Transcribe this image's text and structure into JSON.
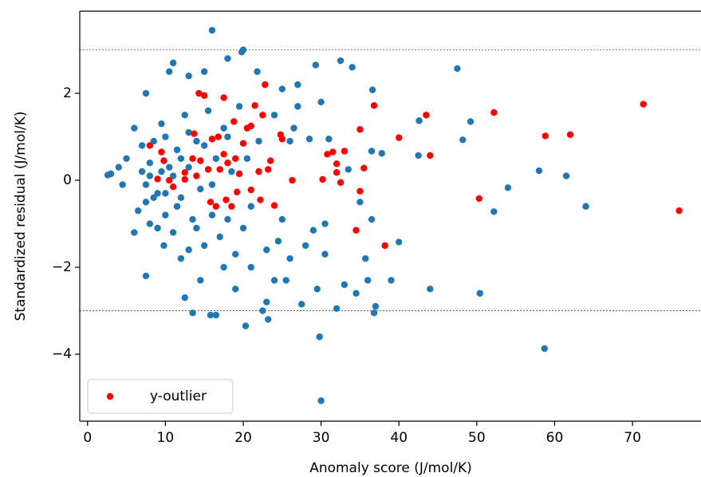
{
  "chart_data": {
    "type": "scatter",
    "xlabel": "Anomaly score (J/mol/K)",
    "ylabel": "Standardized residual (J/mol/K)",
    "xlim": [
      -1.0,
      78.8
    ],
    "ylim": [
      -5.54,
      3.89
    ],
    "xticks": [
      0,
      10,
      20,
      30,
      40,
      50,
      60,
      70
    ],
    "yticks": [
      {
        "value": -4,
        "label": "−4"
      },
      {
        "value": -2,
        "label": "−2"
      },
      0,
      2
    ],
    "hlines": [
      3,
      -3
    ],
    "legend": "lower left",
    "series": [
      {
        "color": "#1f77b4",
        "x": [
          16,
          20,
          30,
          58.7,
          47.5,
          64,
          61.5,
          58,
          54,
          52.2,
          50.4,
          49.2,
          48.2,
          44,
          42.6,
          42.5,
          40,
          39,
          37.8,
          37,
          36.8,
          36.6,
          36.5,
          36.5,
          36,
          35.7,
          35,
          34.5,
          34,
          33.5,
          33,
          32.5,
          32,
          31,
          30.5,
          30.5,
          30,
          29.8,
          29.5,
          29.3,
          29,
          28.5,
          27.5,
          27,
          26.5,
          26,
          25.5,
          25,
          24.5,
          24,
          23.2,
          23,
          22.5,
          21.8,
          21,
          20.3,
          19.8,
          19,
          18,
          17.5,
          16.5,
          15.8,
          15,
          14.5,
          13.5,
          13,
          12.5,
          11,
          10.5,
          9.8,
          7.5,
          7.5,
          5,
          4,
          3,
          2.6,
          4.5,
          6,
          6,
          7,
          7.5,
          8,
          8.5,
          9,
          9.5,
          10,
          10.5,
          11,
          11.5,
          12,
          12.5,
          13,
          13.5,
          14,
          14.5,
          15,
          15.5,
          16,
          16.5,
          17,
          17.5,
          18,
          18.5,
          19,
          19.5,
          20,
          20.5,
          21,
          22,
          23,
          24,
          25,
          26,
          27,
          28,
          6.5,
          7,
          8,
          9,
          10,
          11,
          12,
          13,
          14,
          12,
          10,
          8.5,
          11.5,
          9.5,
          7.5,
          8,
          13,
          15,
          16,
          18
        ],
        "values": [
          3.45,
          3.0,
          -5.07,
          -3.87,
          2.57,
          -0.6,
          0.1,
          0.22,
          -0.17,
          -0.72,
          -2.6,
          1.35,
          0.93,
          -2.5,
          1.37,
          0.57,
          -1.42,
          -2.3,
          0.62,
          -2.9,
          -3.05,
          2.08,
          0.67,
          -0.9,
          -2.3,
          -1.8,
          -0.5,
          -2.6,
          2.6,
          0.25,
          -2.4,
          2.75,
          -2.95,
          0.95,
          -1.0,
          -1.7,
          1.8,
          -3.6,
          -2.5,
          2.65,
          -1.15,
          0.95,
          -2.85,
          2.2,
          1.2,
          0.9,
          -2.3,
          2.1,
          -1.4,
          -2.3,
          -3.2,
          -2.8,
          -3.0,
          2.5,
          -2.0,
          -3.35,
          2.95,
          -2.5,
          2.8,
          -2.0,
          -3.1,
          -3.1,
          2.5,
          -2.3,
          -3.05,
          2.4,
          -2.7,
          2.7,
          2.5,
          -1.5,
          -2.2,
          2.0,
          0.5,
          0.3,
          0.15,
          0.12,
          -0.1,
          -1.2,
          1.2,
          0.2,
          -0.5,
          -1.0,
          0.9,
          -0.3,
          1.3,
          -0.8,
          0.3,
          -1.2,
          0.7,
          -0.4,
          1.5,
          -1.6,
          -0.9,
          0.9,
          -0.2,
          -1.5,
          1.6,
          -0.8,
          0.5,
          -1.3,
          1.2,
          -0.9,
          0.2,
          -1.7,
          1.7,
          -1.1,
          0.5,
          -0.6,
          0.9,
          -1.6,
          1.5,
          -0.9,
          -1.8,
          1.7,
          -1.5,
          -0.7,
          0.8,
          0.1,
          -1.1,
          1.0,
          0.1,
          -1.8,
          1.1,
          -1.1,
          0.5,
          -0.3,
          -0.4,
          -0.6,
          0.2,
          -0.1,
          0.4,
          0.3,
          0.8,
          -0.1,
          1.0
        ]
      },
      {
        "name": "y-outlier",
        "color": "#ff0000",
        "x": [
          8,
          9.5,
          9.8,
          9,
          10.5,
          11,
          12.5,
          12.5,
          13.5,
          13.7,
          14,
          14.3,
          14.5,
          15,
          15.5,
          15.8,
          16,
          16.5,
          16.8,
          17,
          17.5,
          17.5,
          17.8,
          18,
          18.5,
          18.8,
          19,
          19.2,
          19.5,
          20,
          20.5,
          21,
          21.5,
          22,
          22.2,
          22.5,
          22.8,
          23.2,
          23.5,
          24,
          24.8,
          25,
          26.3,
          30.2,
          30.8,
          31.5,
          32,
          32.5,
          33,
          34.5,
          35,
          35.5,
          36.8,
          38.2,
          40,
          43.5,
          44,
          50.3,
          52.2,
          58.8,
          62,
          71.4,
          76,
          35,
          32,
          21
        ],
        "values": [
          0.8,
          0.65,
          0.45,
          0.03,
          0,
          -0.15,
          0.18,
          0.02,
          0.5,
          1.07,
          0.1,
          2.0,
          0.45,
          1.95,
          0.25,
          -0.5,
          0.95,
          -0.6,
          1.0,
          0.25,
          1.9,
          0.6,
          -0.45,
          0.4,
          -0.6,
          1.35,
          0.5,
          -0.27,
          0.15,
          0.85,
          1.2,
          -0.22,
          1.72,
          0.2,
          -0.45,
          1.5,
          2.2,
          0.25,
          0.45,
          -0.58,
          1.05,
          0.95,
          0,
          0.02,
          0.6,
          0.65,
          0.38,
          -0.05,
          0.67,
          -1.15,
          1.17,
          0.28,
          1.72,
          -1.5,
          0.98,
          1.5,
          0.57,
          -0.42,
          1.56,
          1.02,
          1.05,
          1.75,
          -0.7,
          -0.25,
          0.18,
          1.25
        ]
      }
    ]
  }
}
